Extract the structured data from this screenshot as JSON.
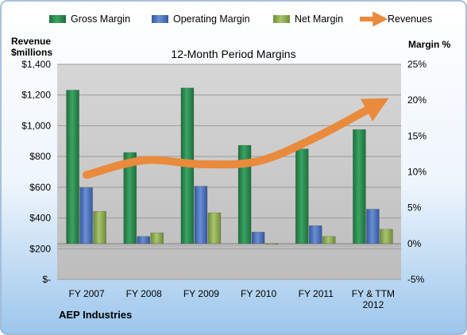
{
  "chart_data": {
    "type": "bar",
    "title": "12-Month Period Margins",
    "categories": [
      "FY 2007",
      "FY 2008",
      "FY 2009",
      "FY 2010",
      "FY 2011",
      "FY & TTM 2012"
    ],
    "series": [
      {
        "name": "Gross Margin",
        "axis": "right",
        "values": [
          21.4,
          12.7,
          21.7,
          13.7,
          13.2,
          15.9
        ]
      },
      {
        "name": "Operating Margin",
        "axis": "right",
        "values": [
          7.8,
          1.0,
          8.0,
          1.6,
          2.5,
          4.8
        ]
      },
      {
        "name": "Net Margin",
        "axis": "right",
        "values": [
          4.5,
          1.5,
          4.3,
          -0.1,
          1.0,
          2.0
        ]
      },
      {
        "name": "Revenues",
        "type": "line",
        "axis": "left",
        "values": [
          680,
          775,
          750,
          770,
          925,
          1125
        ]
      }
    ],
    "y_left": {
      "label_line1": "Revenue",
      "label_line2": "$millions",
      "min": 0,
      "max": 1400,
      "ticks": [
        "$-",
        "$200",
        "$400",
        "$600",
        "$800",
        "$1,000",
        "$1,200",
        "$1,400"
      ]
    },
    "y_right": {
      "label": "Margin %",
      "min": -5,
      "max": 25,
      "ticks": [
        "-5%",
        "0%",
        "5%",
        "10%",
        "15%",
        "20%",
        "25%"
      ]
    },
    "x_tick_labels": [
      [
        "FY 2007"
      ],
      [
        "FY 2008"
      ],
      [
        "FY 2009"
      ],
      [
        "FY 2010"
      ],
      [
        "FY 2011"
      ],
      [
        "FY & TTM",
        "2012"
      ]
    ],
    "footer": "AEP Industries",
    "grid": true,
    "legend_position": "top",
    "colors": {
      "gross": "#2e8b4f",
      "operating": "#4a70b8",
      "net": "#8faa55",
      "revenue_line": "#e98a3c",
      "plot_background": "#c9c9c9",
      "page_background_top": "#ffffff",
      "page_background_bottom": "#9cc6ec"
    }
  }
}
